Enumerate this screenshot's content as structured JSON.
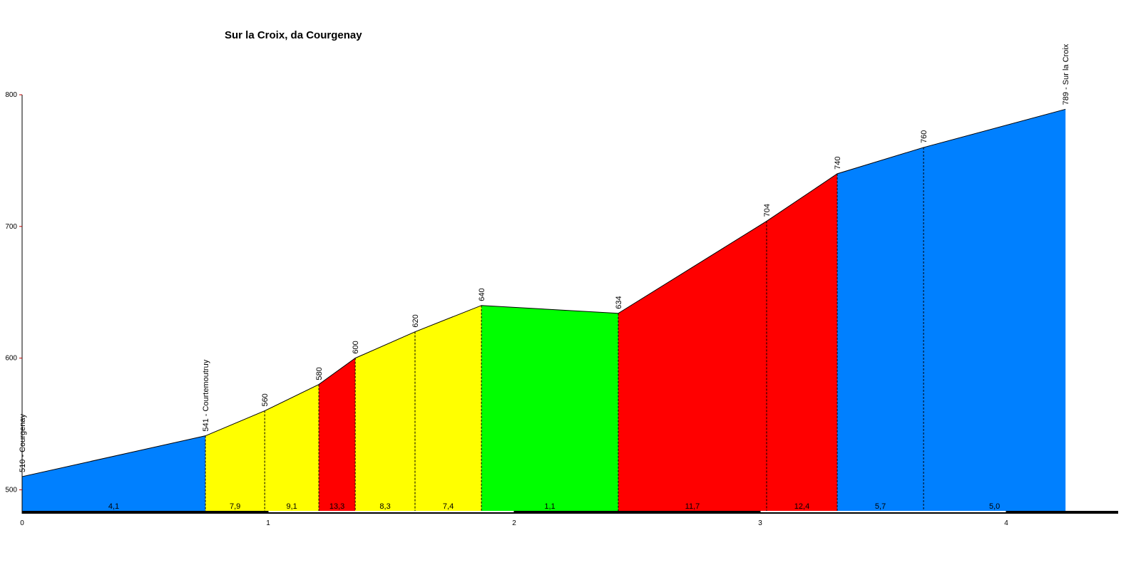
{
  "chart_data": {
    "type": "elevation-profile",
    "title": "Sur la Croix, da Courgenay",
    "x": [
      0,
      0.745,
      0.986,
      1.206,
      1.354,
      1.597,
      1.867,
      2.423,
      3.026,
      3.313,
      3.664,
      4.241
    ],
    "series": [
      {
        "color": "#000000",
        "values": [
          510,
          541,
          560,
          580,
          600,
          620,
          640,
          634,
          704,
          740,
          760,
          789
        ],
        "value_labels": [
          "510 - Courgenay",
          "541 - Courtemoutruy",
          "560",
          "580",
          "600",
          "620",
          "640",
          "634",
          "704",
          "740",
          "760",
          "789 - Sur la Croix"
        ]
      }
    ],
    "segments": {
      "values": [
        4.1,
        7.9,
        9.1,
        13.3,
        8.3,
        7.4,
        1.1,
        11.7,
        12.4,
        5.7,
        5.0
      ],
      "value_labels": [
        "4,1",
        "7,9",
        "9,1",
        "13,3",
        "8,3",
        "7,4",
        "1,1",
        "11,7",
        "12,4",
        "5,7",
        "5,0"
      ],
      "colors": [
        "#0080ff",
        "#ffff00",
        "#ffff00",
        "#ff0000",
        "#ffff00",
        "#ffff00",
        "#00ff00",
        "#ff0000",
        "#ff0000",
        "#0080ff",
        "#0080ff"
      ]
    },
    "xlim": [
      0,
      4.455
    ],
    "xticks": [
      0,
      1,
      2,
      3,
      4
    ],
    "ylim": [
      484,
      800
    ],
    "yticks": [
      500,
      600,
      700,
      800
    ]
  }
}
